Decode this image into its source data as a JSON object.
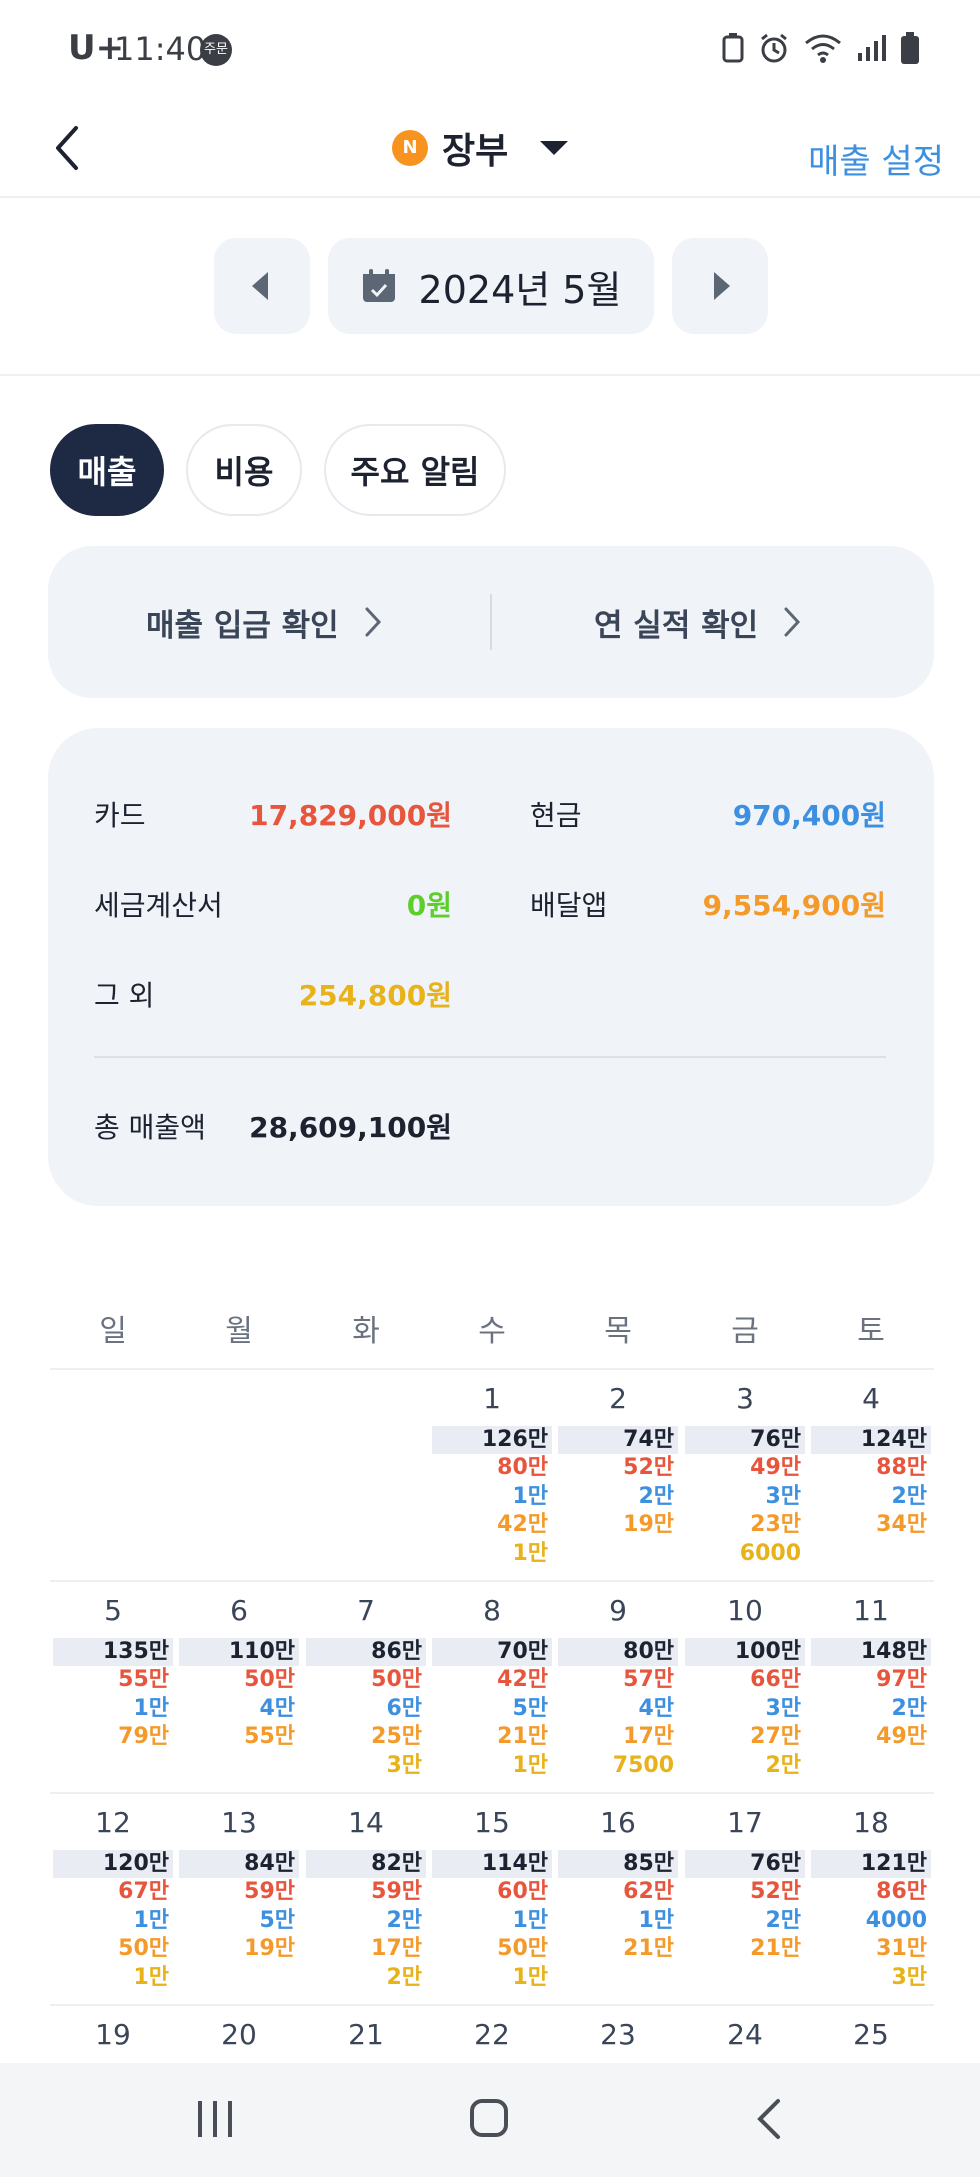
{
  "status_bar": {
    "carrier": "U+",
    "time": "11:40",
    "badge": "주문",
    "icons": [
      "recycle-icon",
      "alarm-icon",
      "wifi-icon",
      "signal-icon",
      "battery-icon"
    ]
  },
  "header": {
    "badge": "N",
    "title": "장부",
    "settings_label": "매출 설정"
  },
  "month_selector": {
    "label": "2024년 5월"
  },
  "tabs": [
    {
      "label": "매출",
      "active": true
    },
    {
      "label": "비용",
      "active": false
    },
    {
      "label": "주요 알림",
      "active": false
    }
  ],
  "quick_links": [
    {
      "label": "매출 입금 확인"
    },
    {
      "label": "연 실적 확인"
    }
  ],
  "summary": {
    "card_label": "카드",
    "card_value": "17,829,000원",
    "cash_label": "현금",
    "cash_value": "970,400원",
    "tax_label": "세금계산서",
    "tax_value": "0원",
    "delivery_label": "배달앱",
    "delivery_value": "9,554,900원",
    "etc_label": "그 외",
    "etc_value": "254,800원",
    "total_label": "총 매출액",
    "total_value": "28,609,100원",
    "colors": {
      "card": "#e8553d",
      "cash": "#3d8fe0",
      "tax": "#5ccf2a",
      "delivery": "#f49a2b",
      "etc": "#e7b21a",
      "total": "#1c2230"
    }
  },
  "calendar": {
    "weekdays": [
      "일",
      "월",
      "화",
      "수",
      "목",
      "금",
      "토"
    ],
    "weeks": [
      [
        {
          "day": "",
          "total": "",
          "lines": []
        },
        {
          "day": "",
          "total": "",
          "lines": []
        },
        {
          "day": "",
          "total": "",
          "lines": []
        },
        {
          "day": "1",
          "total": "126만",
          "lines": [
            {
              "v": "80만",
              "c": "red"
            },
            {
              "v": "1만",
              "c": "blue"
            },
            {
              "v": "42만",
              "c": "orange"
            },
            {
              "v": "1만",
              "c": "yellow"
            }
          ]
        },
        {
          "day": "2",
          "total": "74만",
          "lines": [
            {
              "v": "52만",
              "c": "red"
            },
            {
              "v": "2만",
              "c": "blue"
            },
            {
              "v": "19만",
              "c": "orange"
            }
          ]
        },
        {
          "day": "3",
          "total": "76만",
          "lines": [
            {
              "v": "49만",
              "c": "red"
            },
            {
              "v": "3만",
              "c": "blue"
            },
            {
              "v": "23만",
              "c": "orange"
            },
            {
              "v": "6000",
              "c": "yellow"
            }
          ]
        },
        {
          "day": "4",
          "total": "124만",
          "lines": [
            {
              "v": "88만",
              "c": "red"
            },
            {
              "v": "2만",
              "c": "blue"
            },
            {
              "v": "34만",
              "c": "orange"
            }
          ]
        }
      ],
      [
        {
          "day": "5",
          "total": "135만",
          "lines": [
            {
              "v": "55만",
              "c": "red"
            },
            {
              "v": "1만",
              "c": "blue"
            },
            {
              "v": "79만",
              "c": "orange"
            }
          ]
        },
        {
          "day": "6",
          "total": "110만",
          "lines": [
            {
              "v": "50만",
              "c": "red"
            },
            {
              "v": "4만",
              "c": "blue"
            },
            {
              "v": "55만",
              "c": "orange"
            }
          ]
        },
        {
          "day": "7",
          "total": "86만",
          "lines": [
            {
              "v": "50만",
              "c": "red"
            },
            {
              "v": "6만",
              "c": "blue"
            },
            {
              "v": "25만",
              "c": "orange"
            },
            {
              "v": "3만",
              "c": "yellow"
            }
          ]
        },
        {
          "day": "8",
          "total": "70만",
          "lines": [
            {
              "v": "42만",
              "c": "red"
            },
            {
              "v": "5만",
              "c": "blue"
            },
            {
              "v": "21만",
              "c": "orange"
            },
            {
              "v": "1만",
              "c": "yellow"
            }
          ]
        },
        {
          "day": "9",
          "total": "80만",
          "lines": [
            {
              "v": "57만",
              "c": "red"
            },
            {
              "v": "4만",
              "c": "blue"
            },
            {
              "v": "17만",
              "c": "orange"
            },
            {
              "v": "7500",
              "c": "yellow"
            }
          ]
        },
        {
          "day": "10",
          "total": "100만",
          "lines": [
            {
              "v": "66만",
              "c": "red"
            },
            {
              "v": "3만",
              "c": "blue"
            },
            {
              "v": "27만",
              "c": "orange"
            },
            {
              "v": "2만",
              "c": "yellow"
            }
          ]
        },
        {
          "day": "11",
          "total": "148만",
          "lines": [
            {
              "v": "97만",
              "c": "red"
            },
            {
              "v": "2만",
              "c": "blue"
            },
            {
              "v": "49만",
              "c": "orange"
            }
          ]
        }
      ],
      [
        {
          "day": "12",
          "total": "120만",
          "lines": [
            {
              "v": "67만",
              "c": "red"
            },
            {
              "v": "1만",
              "c": "blue"
            },
            {
              "v": "50만",
              "c": "orange"
            },
            {
              "v": "1만",
              "c": "yellow"
            }
          ]
        },
        {
          "day": "13",
          "total": "84만",
          "lines": [
            {
              "v": "59만",
              "c": "red"
            },
            {
              "v": "5만",
              "c": "blue"
            },
            {
              "v": "19만",
              "c": "orange"
            }
          ]
        },
        {
          "day": "14",
          "total": "82만",
          "lines": [
            {
              "v": "59만",
              "c": "red"
            },
            {
              "v": "2만",
              "c": "blue"
            },
            {
              "v": "17만",
              "c": "orange"
            },
            {
              "v": "2만",
              "c": "yellow"
            }
          ]
        },
        {
          "day": "15",
          "total": "114만",
          "lines": [
            {
              "v": "60만",
              "c": "red"
            },
            {
              "v": "1만",
              "c": "blue"
            },
            {
              "v": "50만",
              "c": "orange"
            },
            {
              "v": "1만",
              "c": "yellow"
            }
          ]
        },
        {
          "day": "16",
          "total": "85만",
          "lines": [
            {
              "v": "62만",
              "c": "red"
            },
            {
              "v": "1만",
              "c": "blue"
            },
            {
              "v": "21만",
              "c": "orange"
            }
          ]
        },
        {
          "day": "17",
          "total": "76만",
          "lines": [
            {
              "v": "52만",
              "c": "red"
            },
            {
              "v": "2만",
              "c": "blue"
            },
            {
              "v": "21만",
              "c": "orange"
            }
          ]
        },
        {
          "day": "18",
          "total": "121만",
          "lines": [
            {
              "v": "86만",
              "c": "red"
            },
            {
              "v": "4000",
              "c": "blue"
            },
            {
              "v": "31만",
              "c": "orange"
            },
            {
              "v": "3만",
              "c": "yellow"
            }
          ]
        }
      ],
      [
        {
          "day": "19",
          "total": "",
          "lines": []
        },
        {
          "day": "20",
          "total": "",
          "lines": []
        },
        {
          "day": "21",
          "total": "",
          "lines": []
        },
        {
          "day": "22",
          "total": "",
          "lines": []
        },
        {
          "day": "23",
          "total": "",
          "lines": []
        },
        {
          "day": "24",
          "total": "",
          "lines": []
        },
        {
          "day": "25",
          "total": "",
          "lines": []
        }
      ]
    ],
    "line_colors": {
      "red": "#e8553d",
      "blue": "#3d8fe0",
      "orange": "#f49a2b",
      "yellow": "#e7b21a"
    }
  },
  "bottom_nav": {
    "icons": [
      "recent-apps-icon",
      "home-icon",
      "back-icon"
    ]
  }
}
